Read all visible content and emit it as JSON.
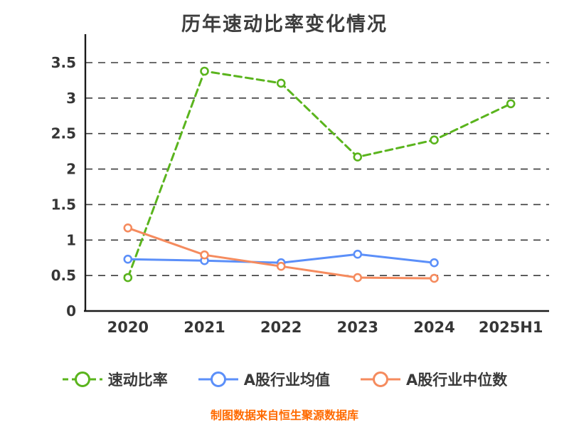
{
  "title": "历年速动比率变化情况",
  "footer": "制图数据来自恒生聚源数据库",
  "colors": {
    "title": "#3d3d3d",
    "axis_text": "#363636",
    "axis_line": "#1a1a1a",
    "grid_line": "#3c3c3c",
    "footer": "#ff6a00",
    "quick_ratio_green": "#5ab41d",
    "industry_avg_blue": "#5b8ff9",
    "industry_median_orange": "#f58b5e"
  },
  "chart_data": {
    "type": "line",
    "title": "历年速动比率变化情况",
    "xlabel": "",
    "ylabel": "",
    "categories": [
      "2020",
      "2021",
      "2022",
      "2023",
      "2024",
      "2025H1"
    ],
    "series": [
      {
        "name": "速动比率",
        "color": "#5ab41d",
        "dash": "10 6",
        "marker": "circle-white-fill",
        "values": [
          0.47,
          3.38,
          3.21,
          2.17,
          2.41,
          2.92
        ]
      },
      {
        "name": "A股行业均值",
        "color": "#5b8ff9",
        "dash": "",
        "marker": "circle-white-fill",
        "values": [
          0.73,
          0.71,
          0.68,
          0.8,
          0.68,
          null
        ]
      },
      {
        "name": "A股行业中位数",
        "color": "#f58b5e",
        "dash": "",
        "marker": "circle-white-fill",
        "values": [
          1.17,
          0.79,
          0.63,
          0.47,
          0.46,
          null
        ]
      }
    ],
    "ylim": [
      0,
      3.5
    ],
    "yticks": [
      0,
      0.5,
      1,
      1.5,
      2,
      2.5,
      3,
      3.5
    ],
    "grid": "horizontal-dashed",
    "legend_position": "bottom"
  }
}
